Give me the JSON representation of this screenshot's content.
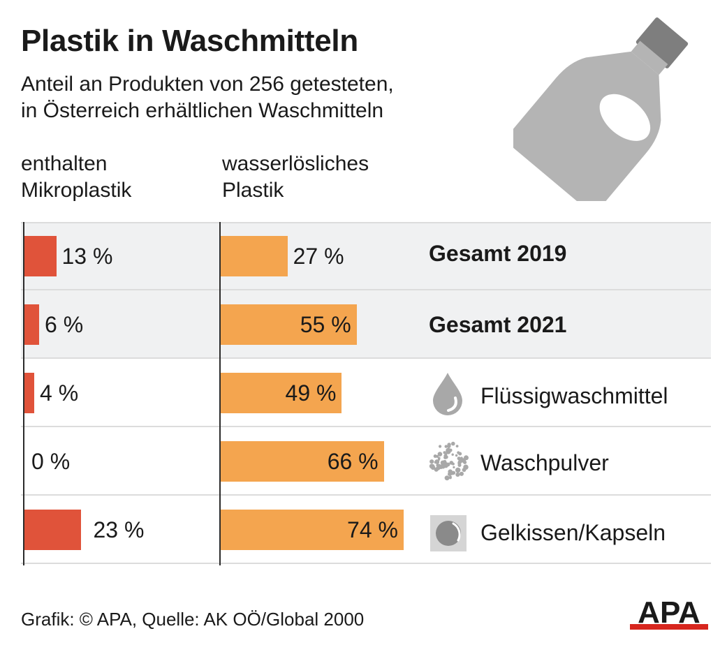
{
  "title": "Plastik in Waschmitteln",
  "subtitle_line1": "Anteil an Produkten von 256 getesteten,",
  "subtitle_line2": "in Österreich erhältlichen Waschmitteln",
  "footer": "Grafik: © APA, Quelle: AK OÖ/Global 2000",
  "logo_text": "APA",
  "colors": {
    "micro": "#e0533a",
    "water": "#f4a54f",
    "shade": "#f0f1f2",
    "icon": "#a8a8a8"
  },
  "chart_data": {
    "type": "bar",
    "orientation": "horizontal",
    "categories": [
      "Gesamt 2019",
      "Gesamt 2021",
      "Flüssigwaschmittel",
      "Waschpulver",
      "Gelkissen/Kapseln"
    ],
    "category_icons": [
      "",
      "",
      "drop-icon",
      "powder-icon",
      "capsule-icon"
    ],
    "highlighted_categories": [
      "Gesamt 2019",
      "Gesamt 2021"
    ],
    "series": [
      {
        "name_line1": "enthalten",
        "name_line2": "Mikroplastik",
        "values": [
          13,
          6,
          4,
          0,
          23
        ],
        "labels": [
          "13 %",
          "6 %",
          "4 %",
          "0 %",
          "23 %"
        ]
      },
      {
        "name_line1": "wasserlösliches",
        "name_line2": "Plastik",
        "values": [
          27,
          55,
          49,
          66,
          74
        ],
        "labels": [
          "27 %",
          "55 %",
          "49 %",
          "66 %",
          "74 %"
        ]
      }
    ],
    "unit": "%",
    "xlim": [
      0,
      100
    ],
    "grid": false,
    "legend": "column headers above bars"
  }
}
